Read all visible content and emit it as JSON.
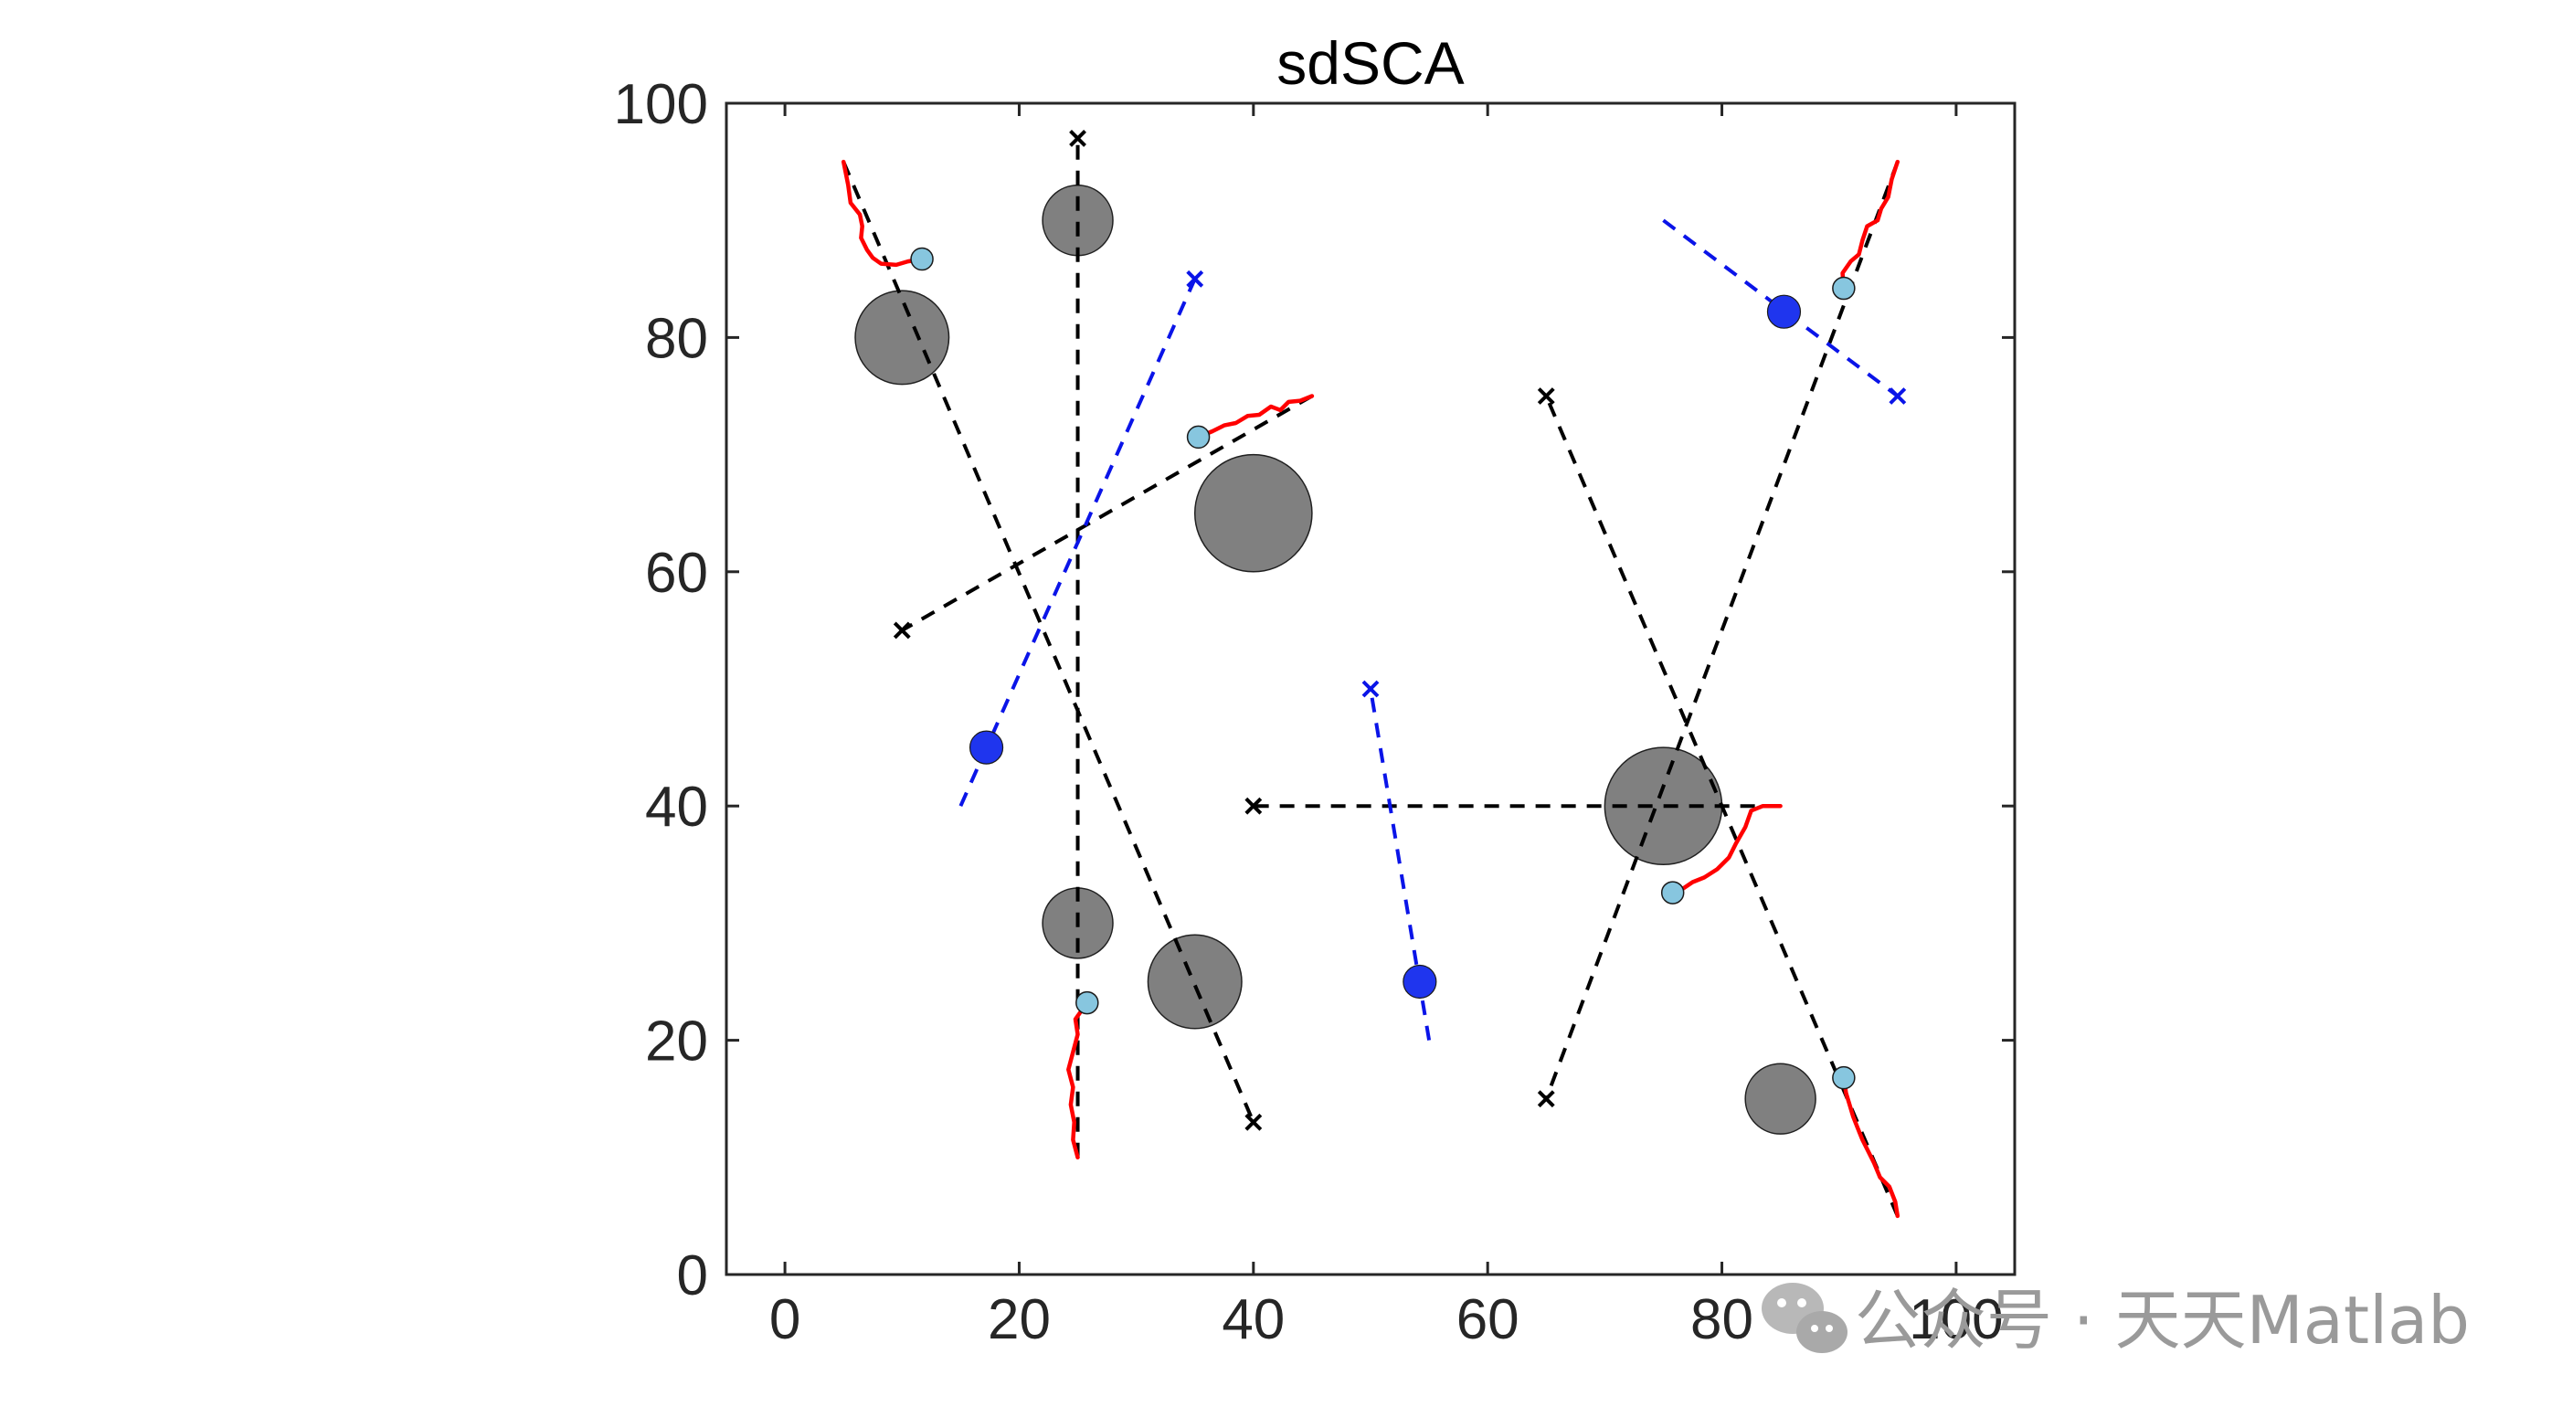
{
  "watermark": {
    "text": "公众号 · 天天Matlab",
    "icon": "wechat-icon"
  },
  "colors": {
    "obstacle_fill": "#808080",
    "obstacle_stroke": "#202020",
    "black_route": "#000000",
    "blue_route": "#0a14e8",
    "trajectory": "#ff0000",
    "agent_light": "#87c6df",
    "agent_blue": "#1f35ee"
  },
  "chart_data": {
    "type": "scatter",
    "title": "sdSCA",
    "xlim": [
      -5,
      105
    ],
    "ylim": [
      0,
      100
    ],
    "xticks": [
      0,
      20,
      40,
      60,
      80,
      100
    ],
    "yticks": [
      0,
      20,
      40,
      60,
      80,
      100
    ],
    "grid": false,
    "obstacles": [
      {
        "x": 25,
        "y": 90,
        "r": 3
      },
      {
        "x": 10,
        "y": 80,
        "r": 4
      },
      {
        "x": 40,
        "y": 65,
        "r": 5
      },
      {
        "x": 25,
        "y": 30,
        "r": 3
      },
      {
        "x": 35,
        "y": 25,
        "r": 4
      },
      {
        "x": 75,
        "y": 40,
        "r": 5
      },
      {
        "x": 85,
        "y": 15,
        "r": 3
      }
    ],
    "black_routes": [
      {
        "start": [
          25,
          10
        ],
        "goal": [
          25,
          97
        ]
      },
      {
        "start": [
          5,
          95
        ],
        "goal": [
          40,
          13
        ]
      },
      {
        "start": [
          45,
          75
        ],
        "goal": [
          10,
          55
        ]
      },
      {
        "start": [
          95,
          95
        ],
        "goal": [
          65,
          15
        ]
      },
      {
        "start": [
          95,
          5
        ],
        "goal": [
          65,
          75
        ]
      },
      {
        "start": [
          85,
          40
        ],
        "goal": [
          40,
          40
        ]
      }
    ],
    "blue_routes": [
      {
        "start": [
          15,
          40
        ],
        "goal": [
          35,
          85
        ]
      },
      {
        "start": [
          55,
          20
        ],
        "goal": [
          50,
          50
        ]
      },
      {
        "start": [
          75,
          90
        ],
        "goal": [
          95,
          75
        ]
      }
    ],
    "trajectories": [
      [
        [
          5,
          95
        ],
        [
          5.4,
          93
        ],
        [
          5.6,
          91.5
        ],
        [
          6.4,
          90.5
        ],
        [
          6.6,
          89.5
        ],
        [
          6.5,
          88.5
        ],
        [
          7,
          87.5
        ],
        [
          7.5,
          86.8
        ],
        [
          8.2,
          86.3
        ],
        [
          9.5,
          86.2
        ],
        [
          10.5,
          86.5
        ],
        [
          11.7,
          86.7
        ]
      ],
      [
        [
          25,
          10
        ],
        [
          24.6,
          11.5
        ],
        [
          24.7,
          13
        ],
        [
          24.4,
          14.5
        ],
        [
          24.6,
          16
        ],
        [
          24.2,
          17.5
        ],
        [
          24.6,
          19
        ],
        [
          25,
          20.5
        ],
        [
          24.8,
          21.8
        ],
        [
          25.3,
          22.5
        ],
        [
          25.8,
          23.2
        ]
      ],
      [
        [
          45,
          75
        ],
        [
          44,
          74.6
        ],
        [
          43,
          74.5
        ],
        [
          42.3,
          73.8
        ],
        [
          41.5,
          74.1
        ],
        [
          40.5,
          73.4
        ],
        [
          39.5,
          73.3
        ],
        [
          38.5,
          72.7
        ],
        [
          37.5,
          72.5
        ],
        [
          36.5,
          72
        ],
        [
          35.3,
          71.5
        ]
      ],
      [
        [
          95,
          95
        ],
        [
          94.5,
          93.5
        ],
        [
          94.2,
          92
        ],
        [
          93.6,
          91
        ],
        [
          93.3,
          90
        ],
        [
          92.4,
          89.5
        ],
        [
          92,
          88.3
        ],
        [
          91.7,
          87.1
        ],
        [
          91,
          86.5
        ],
        [
          90.3,
          85.5
        ],
        [
          90.4,
          84.2
        ]
      ],
      [
        [
          95,
          5
        ],
        [
          94.8,
          6.2
        ],
        [
          94.3,
          7.5
        ],
        [
          93.5,
          8.3
        ],
        [
          93,
          9.5
        ],
        [
          92.5,
          10.5
        ],
        [
          92,
          11.5
        ],
        [
          91.6,
          12.5
        ],
        [
          91.2,
          13.5
        ],
        [
          90.9,
          14.5
        ],
        [
          90.6,
          15.5
        ],
        [
          90.4,
          16.8
        ]
      ],
      [
        [
          85,
          40
        ],
        [
          83.5,
          40
        ],
        [
          82.5,
          39.6
        ],
        [
          82,
          38.2
        ],
        [
          81.2,
          36.8
        ],
        [
          80.6,
          35.6
        ],
        [
          79.6,
          34.6
        ],
        [
          78.5,
          33.9
        ],
        [
          77.5,
          33.5
        ],
        [
          76.6,
          32.9
        ],
        [
          75.8,
          32.6
        ]
      ]
    ],
    "agents_light": [
      [
        11.7,
        86.7
      ],
      [
        25.8,
        23.2
      ],
      [
        35.3,
        71.5
      ],
      [
        90.4,
        84.2
      ],
      [
        90.4,
        16.8
      ],
      [
        75.8,
        32.6
      ]
    ],
    "agents_blue": [
      [
        17.2,
        45
      ],
      [
        54.2,
        25
      ],
      [
        85.3,
        82.2
      ]
    ]
  }
}
